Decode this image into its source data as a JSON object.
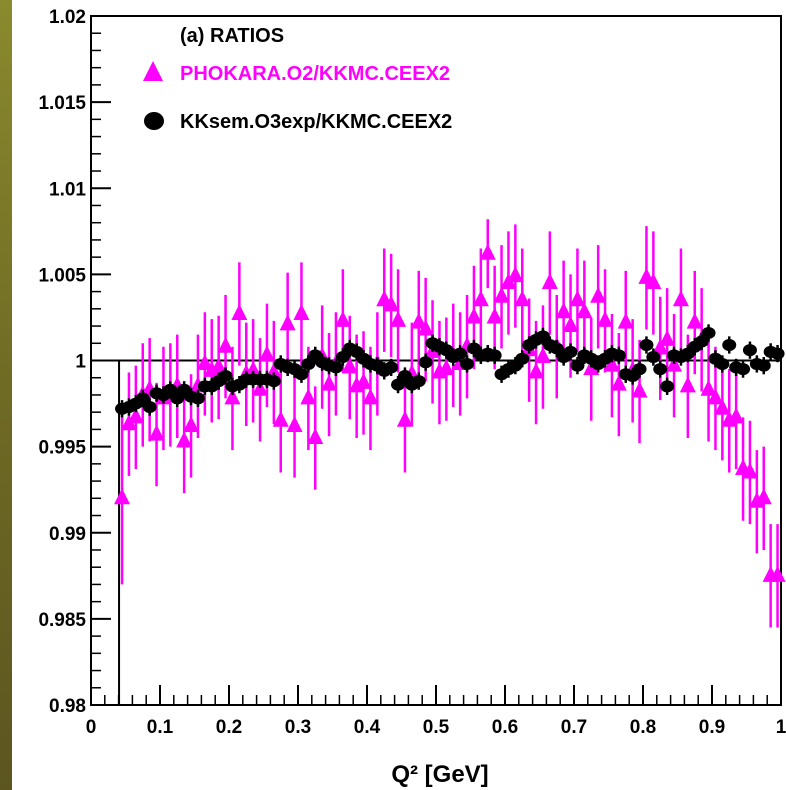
{
  "chart_data": {
    "type": "scatter",
    "title": "",
    "xlabel": "Q² [GeV]",
    "ylabel": "",
    "xlim": [
      0,
      1
    ],
    "ylim": [
      0.98,
      1.02
    ],
    "x_ticks": [
      "0",
      "0.1",
      "0.2",
      "0.3",
      "0.4",
      "0.5",
      "0.6",
      "0.7",
      "0.8",
      "0.9",
      "1"
    ],
    "y_ticks": [
      "0.98",
      "0.985",
      "0.99",
      "0.995",
      "1",
      "1.005",
      "1.01",
      "1.015",
      "1.02"
    ],
    "reference_line": 1.0,
    "legend": {
      "header": "(a) RATIOS",
      "placement": "top-left"
    },
    "series": [
      {
        "name": "PHOKARA.O2/KKMC.CEEX2",
        "marker": "triangle",
        "color": "#ff00ff",
        "x": [
          0.045,
          0.055,
          0.065,
          0.075,
          0.085,
          0.095,
          0.105,
          0.115,
          0.125,
          0.135,
          0.145,
          0.155,
          0.165,
          0.175,
          0.185,
          0.195,
          0.205,
          0.215,
          0.225,
          0.235,
          0.245,
          0.255,
          0.265,
          0.275,
          0.285,
          0.295,
          0.305,
          0.315,
          0.325,
          0.335,
          0.345,
          0.355,
          0.365,
          0.375,
          0.385,
          0.395,
          0.405,
          0.415,
          0.425,
          0.435,
          0.445,
          0.455,
          0.465,
          0.475,
          0.485,
          0.495,
          0.505,
          0.515,
          0.525,
          0.535,
          0.545,
          0.555,
          0.565,
          0.575,
          0.585,
          0.595,
          0.605,
          0.615,
          0.625,
          0.635,
          0.645,
          0.655,
          0.665,
          0.675,
          0.685,
          0.695,
          0.705,
          0.715,
          0.725,
          0.735,
          0.745,
          0.755,
          0.765,
          0.775,
          0.785,
          0.795,
          0.805,
          0.815,
          0.825,
          0.835,
          0.845,
          0.855,
          0.865,
          0.875,
          0.885,
          0.895,
          0.905,
          0.915,
          0.925,
          0.935,
          0.945,
          0.955,
          0.965,
          0.975,
          0.985,
          0.995
        ],
        "y": [
          0.992,
          0.9963,
          0.9967,
          0.998,
          0.9983,
          0.9957,
          0.9978,
          0.998,
          0.9985,
          0.9953,
          0.9962,
          0.9985,
          0.9998,
          0.9994,
          0.9996,
          1.0008,
          0.9978,
          1.0027,
          0.9992,
          0.9994,
          0.9983,
          1.0003,
          0.9993,
          0.9965,
          1.0021,
          0.9962,
          1.0027,
          0.9978,
          0.9955,
          1.0002,
          0.9986,
          0.9998,
          1.0023,
          0.9996,
          0.9985,
          0.9987,
          0.9978,
          0.9998,
          1.0035,
          1.0032,
          1.0023,
          0.9965,
          0.9992,
          1.0022,
          1.0018,
          1.0005,
          0.9993,
          0.9995,
          1.0003,
          0.9998,
          1.0008,
          1.0025,
          1.0035,
          1.0062,
          1.0025,
          1.0037,
          1.0045,
          1.0049,
          1.0035,
          1.0006,
          0.9993,
          1.0002,
          1.0045,
          1.0008,
          1.0028,
          1.002,
          1.0035,
          1.0028,
          0.9995,
          1.0037,
          1.0023,
          0.9997,
          0.9986,
          1.0022,
          0.9994,
          0.9982,
          1.0048,
          1.0045,
          1.0007,
          1.0012,
          0.9997,
          1.0035,
          0.9985,
          1.0022,
          1.0012,
          0.9983,
          0.9978,
          0.9972,
          0.9965,
          0.9967,
          0.9937,
          0.9935,
          0.9918,
          0.992,
          0.9875,
          0.9875
        ],
        "yerr": [
          0.005,
          0.003,
          0.003,
          0.003,
          0.003,
          0.003,
          0.003,
          0.003,
          0.003,
          0.003,
          0.003,
          0.003,
          0.003,
          0.003,
          0.003,
          0.003,
          0.003,
          0.003,
          0.003,
          0.003,
          0.003,
          0.003,
          0.003,
          0.003,
          0.003,
          0.003,
          0.003,
          0.003,
          0.003,
          0.003,
          0.003,
          0.003,
          0.003,
          0.003,
          0.003,
          0.003,
          0.003,
          0.003,
          0.003,
          0.003,
          0.003,
          0.003,
          0.003,
          0.003,
          0.003,
          0.003,
          0.003,
          0.003,
          0.003,
          0.003,
          0.003,
          0.003,
          0.003,
          0.002,
          0.003,
          0.003,
          0.003,
          0.003,
          0.003,
          0.003,
          0.003,
          0.003,
          0.003,
          0.003,
          0.003,
          0.003,
          0.003,
          0.003,
          0.003,
          0.003,
          0.003,
          0.003,
          0.003,
          0.003,
          0.003,
          0.003,
          0.003,
          0.003,
          0.003,
          0.003,
          0.003,
          0.003,
          0.003,
          0.003,
          0.003,
          0.003,
          0.003,
          0.003,
          0.003,
          0.003,
          0.003,
          0.003,
          0.003,
          0.003,
          0.003,
          0.003
        ]
      },
      {
        "name": "KKsem.O3exp/KKMC.CEEX2",
        "marker": "circle",
        "color": "#000000",
        "x": [
          0.045,
          0.055,
          0.065,
          0.075,
          0.085,
          0.095,
          0.105,
          0.115,
          0.125,
          0.135,
          0.145,
          0.155,
          0.165,
          0.175,
          0.185,
          0.195,
          0.205,
          0.215,
          0.225,
          0.235,
          0.245,
          0.255,
          0.265,
          0.275,
          0.285,
          0.295,
          0.305,
          0.315,
          0.325,
          0.335,
          0.345,
          0.355,
          0.365,
          0.375,
          0.385,
          0.395,
          0.405,
          0.415,
          0.425,
          0.435,
          0.445,
          0.455,
          0.465,
          0.475,
          0.485,
          0.495,
          0.505,
          0.515,
          0.525,
          0.535,
          0.545,
          0.555,
          0.565,
          0.575,
          0.585,
          0.595,
          0.605,
          0.615,
          0.625,
          0.635,
          0.645,
          0.655,
          0.665,
          0.675,
          0.685,
          0.695,
          0.705,
          0.715,
          0.725,
          0.735,
          0.745,
          0.755,
          0.765,
          0.775,
          0.785,
          0.795,
          0.805,
          0.815,
          0.825,
          0.835,
          0.845,
          0.855,
          0.865,
          0.875,
          0.885,
          0.895,
          0.905,
          0.915,
          0.925,
          0.935,
          0.945,
          0.955,
          0.965,
          0.975,
          0.985,
          0.995
        ],
        "y": [
          0.9972,
          0.9973,
          0.9975,
          0.9978,
          0.9973,
          0.9981,
          0.998,
          0.9983,
          0.9978,
          0.9983,
          0.9979,
          0.9978,
          0.9985,
          0.9985,
          0.9988,
          0.9991,
          0.9985,
          0.9986,
          0.9989,
          0.9989,
          0.9989,
          0.9989,
          0.9988,
          0.9998,
          0.9996,
          0.9995,
          0.9992,
          0.9998,
          1.0003,
          0.9999,
          0.9997,
          0.9996,
          1.0002,
          1.0007,
          1.0005,
          1.0001,
          0.9998,
          0.9997,
          0.9994,
          0.9996,
          0.9986,
          0.9991,
          0.9986,
          0.9988,
          0.9999,
          1.001,
          1.0008,
          1.0006,
          1.0002,
          1.0004,
          0.9998,
          1.0007,
          1.0003,
          1.0004,
          1.0003,
          0.9992,
          0.9995,
          0.9997,
          1.0001,
          1.0009,
          1.0012,
          1.0014,
          1.0009,
          1.0007,
          1.0002,
          1.0005,
          0.9997,
          1.0003,
          1.0001,
          0.9998,
          1.0001,
          1.0004,
          1.0003,
          0.9992,
          0.9991,
          0.9995,
          1.0009,
          1.0002,
          0.9995,
          0.9985,
          1.0003,
          1.0002,
          1.0004,
          1.0008,
          1.0011,
          1.0016,
          1.0001,
          0.9998,
          1.0009,
          0.9996,
          0.9995,
          1.0006,
          0.9998,
          0.9997,
          1.0005,
          1.0004
        ],
        "yerr": [
          0.0005,
          0.0005,
          0.0005,
          0.0005,
          0.0005,
          0.0005,
          0.0005,
          0.0005,
          0.0005,
          0.0005,
          0.0005,
          0.0005,
          0.0005,
          0.0005,
          0.0005,
          0.0005,
          0.0005,
          0.0005,
          0.0005,
          0.0005,
          0.0005,
          0.0005,
          0.0005,
          0.0005,
          0.0005,
          0.0005,
          0.0005,
          0.0005,
          0.0005,
          0.0005,
          0.0005,
          0.0005,
          0.0005,
          0.0005,
          0.0005,
          0.0005,
          0.0005,
          0.0005,
          0.0005,
          0.0005,
          0.0005,
          0.0005,
          0.0005,
          0.0005,
          0.0005,
          0.0005,
          0.0005,
          0.0005,
          0.0005,
          0.0005,
          0.0005,
          0.0005,
          0.0005,
          0.0005,
          0.0005,
          0.0005,
          0.0005,
          0.0005,
          0.0005,
          0.0005,
          0.0005,
          0.0005,
          0.0005,
          0.0005,
          0.0005,
          0.0005,
          0.0005,
          0.0005,
          0.0005,
          0.0005,
          0.0005,
          0.0005,
          0.0005,
          0.0005,
          0.0005,
          0.0005,
          0.0005,
          0.0005,
          0.0005,
          0.0005,
          0.0005,
          0.0005,
          0.0005,
          0.0005,
          0.0005,
          0.0005,
          0.0005,
          0.0005,
          0.0005,
          0.0005,
          0.0005,
          0.0005,
          0.0005,
          0.0005,
          0.0005,
          0.0005
        ]
      }
    ]
  }
}
